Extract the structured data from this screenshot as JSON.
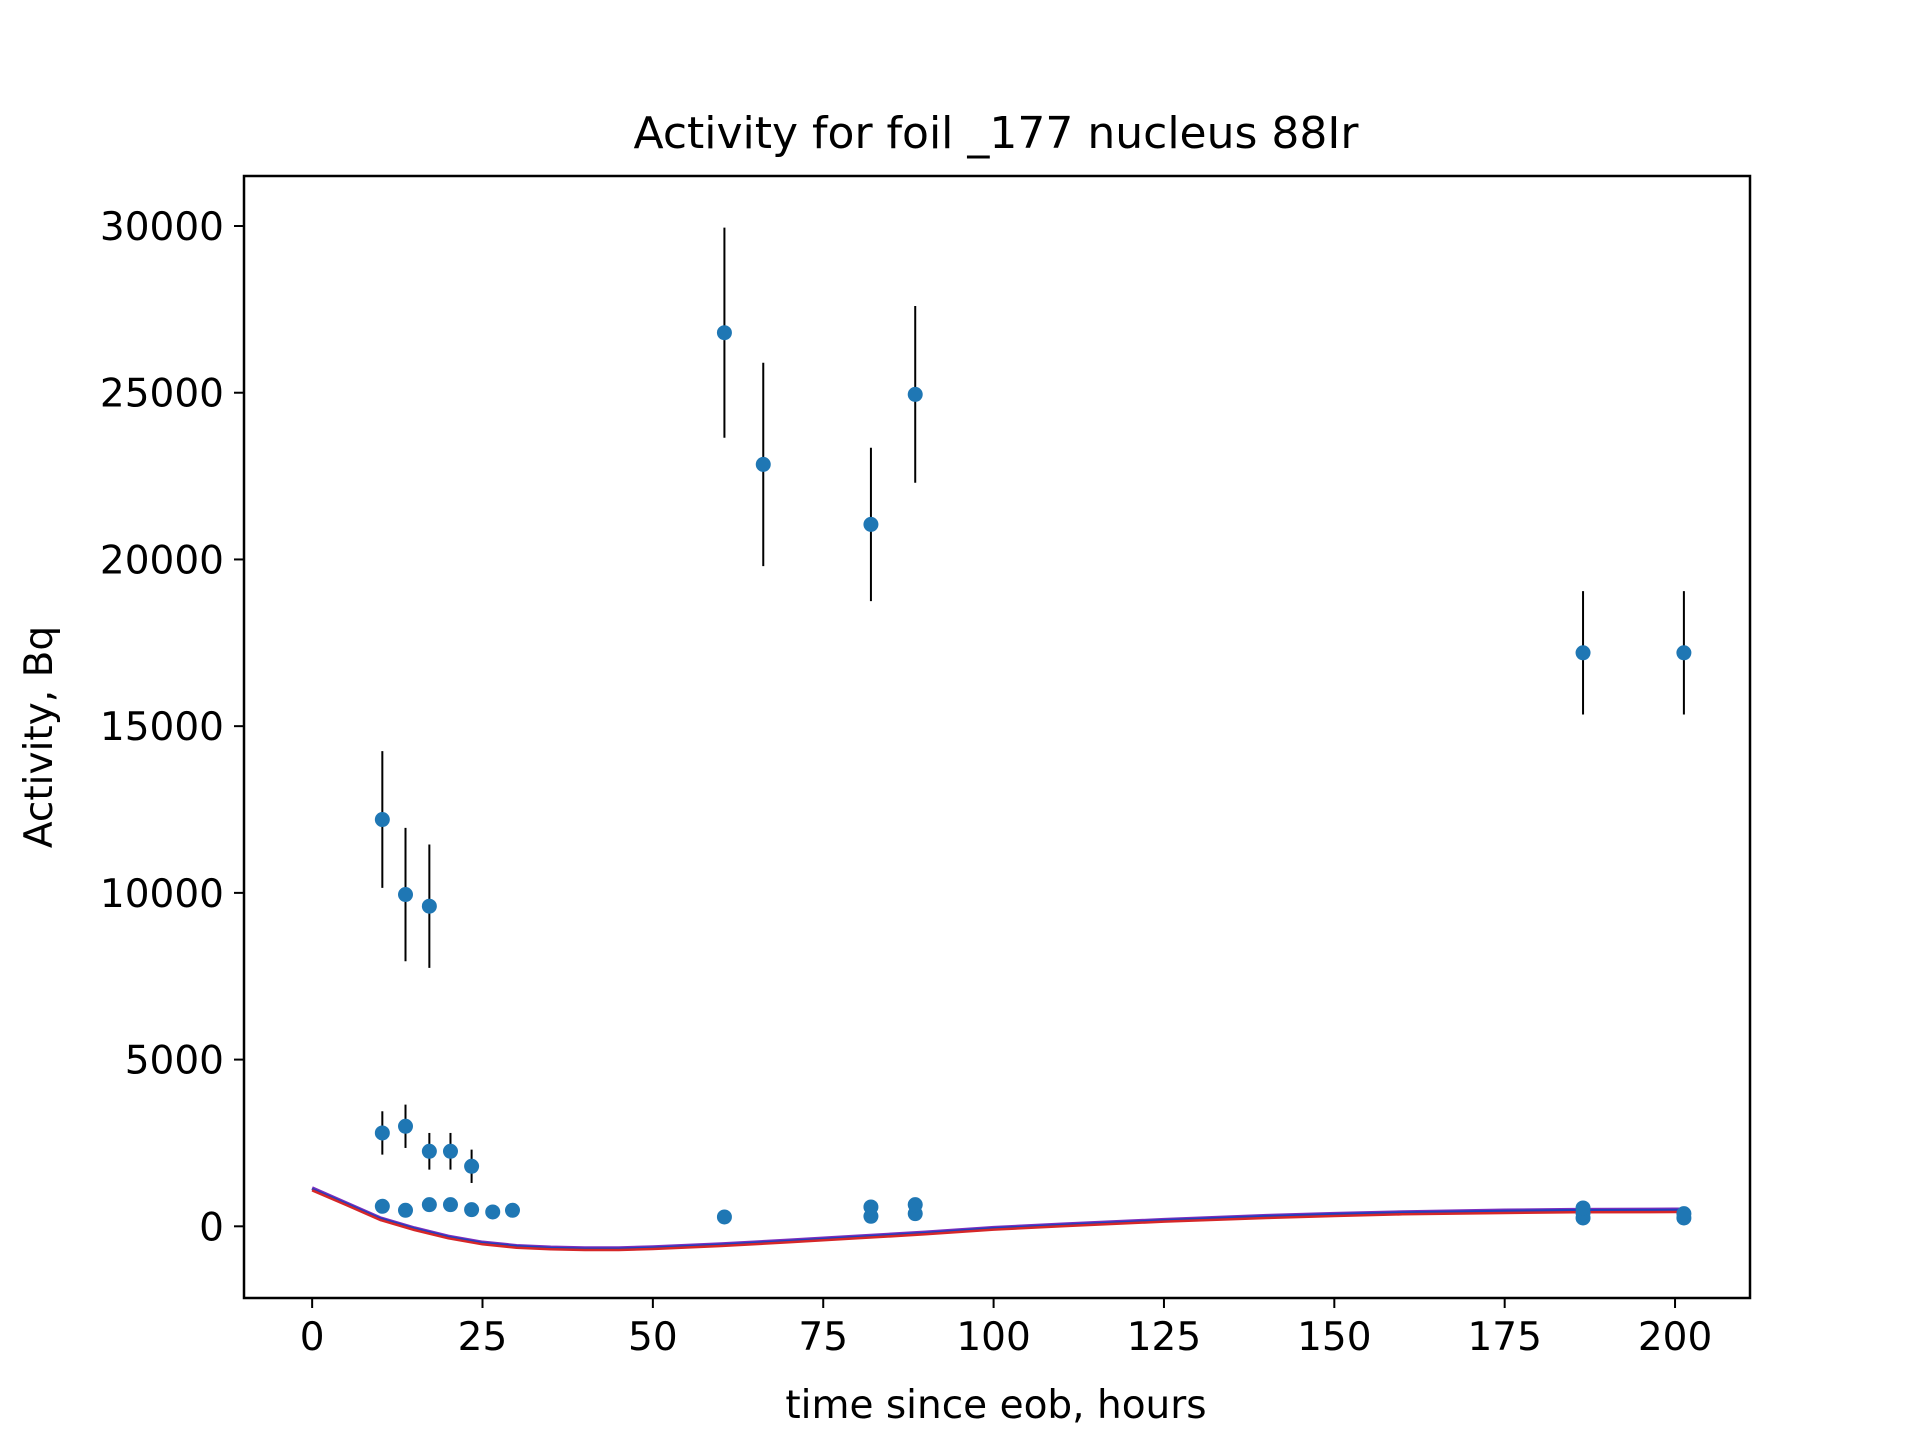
{
  "chart_data": {
    "type": "scatter",
    "title": "Activity for foil _177 nucleus 88Ir",
    "xlabel": "time since eob, hours",
    "ylabel": "Activity, Bq",
    "xlim": [
      -10,
      211
    ],
    "ylim": [
      -2150,
      31500
    ],
    "xticks": [
      0,
      25,
      50,
      75,
      100,
      125,
      150,
      175,
      200
    ],
    "yticks": [
      0,
      5000,
      10000,
      15000,
      20000,
      25000,
      30000
    ],
    "grid": false,
    "marker_color": "#1f77b4",
    "errorbar_color": "#000000",
    "points": [
      {
        "x": 10.3,
        "y": 12200,
        "err": 2050
      },
      {
        "x": 13.7,
        "y": 9950,
        "err": 2000
      },
      {
        "x": 17.2,
        "y": 9600,
        "err": 1850
      },
      {
        "x": 60.5,
        "y": 26800,
        "err": 3150
      },
      {
        "x": 66.2,
        "y": 22850,
        "err": 3050
      },
      {
        "x": 82.0,
        "y": 21050,
        "err": 2300
      },
      {
        "x": 88.5,
        "y": 24950,
        "err": 2650
      },
      {
        "x": 186.5,
        "y": 17200,
        "err": 1850
      },
      {
        "x": 201.3,
        "y": 17200,
        "err": 1850
      },
      {
        "x": 10.3,
        "y": 2800,
        "err": 650
      },
      {
        "x": 13.7,
        "y": 3000,
        "err": 650
      },
      {
        "x": 17.2,
        "y": 2250,
        "err": 550
      },
      {
        "x": 20.3,
        "y": 2250,
        "err": 550
      },
      {
        "x": 23.4,
        "y": 1800,
        "err": 500
      },
      {
        "x": 10.3,
        "y": 600,
        "err": 0
      },
      {
        "x": 13.7,
        "y": 480,
        "err": 0
      },
      {
        "x": 17.2,
        "y": 650,
        "err": 0
      },
      {
        "x": 20.3,
        "y": 650,
        "err": 0
      },
      {
        "x": 23.4,
        "y": 500,
        "err": 0
      },
      {
        "x": 26.5,
        "y": 430,
        "err": 0
      },
      {
        "x": 29.4,
        "y": 480,
        "err": 0
      },
      {
        "x": 60.5,
        "y": 280,
        "err": 0
      },
      {
        "x": 82.0,
        "y": 300,
        "err": 0
      },
      {
        "x": 82.0,
        "y": 580,
        "err": 0
      },
      {
        "x": 88.5,
        "y": 380,
        "err": 0
      },
      {
        "x": 88.5,
        "y": 650,
        "err": 0
      },
      {
        "x": 186.5,
        "y": 250,
        "err": 0
      },
      {
        "x": 186.5,
        "y": 400,
        "err": 0
      },
      {
        "x": 186.5,
        "y": 550,
        "err": 0
      },
      {
        "x": 201.3,
        "y": 250,
        "err": 0
      },
      {
        "x": 201.3,
        "y": 380,
        "err": 0
      }
    ],
    "fit_lines": [
      {
        "color": "#7b2fbe",
        "width": 3.5,
        "points": [
          [
            0,
            1150
          ],
          [
            5,
            700
          ],
          [
            10,
            250
          ],
          [
            15,
            -50
          ],
          [
            20,
            -300
          ],
          [
            25,
            -480
          ],
          [
            30,
            -580
          ],
          [
            35,
            -630
          ],
          [
            40,
            -650
          ],
          [
            45,
            -650
          ],
          [
            50,
            -620
          ],
          [
            60,
            -530
          ],
          [
            70,
            -420
          ],
          [
            80,
            -300
          ],
          [
            90,
            -180
          ],
          [
            100,
            -40
          ],
          [
            110,
            60
          ],
          [
            125,
            200
          ],
          [
            140,
            320
          ],
          [
            150,
            380
          ],
          [
            160,
            430
          ],
          [
            175,
            480
          ],
          [
            185,
            500
          ],
          [
            200,
            510
          ],
          [
            201.3,
            510
          ]
        ]
      },
      {
        "color": "#1f3fbf",
        "width": 2.5,
        "points": [
          [
            0,
            1120
          ],
          [
            5,
            680
          ],
          [
            10,
            230
          ],
          [
            15,
            -70
          ],
          [
            20,
            -320
          ],
          [
            25,
            -500
          ],
          [
            30,
            -600
          ],
          [
            35,
            -650
          ],
          [
            40,
            -670
          ],
          [
            45,
            -670
          ],
          [
            50,
            -640
          ],
          [
            60,
            -550
          ],
          [
            70,
            -440
          ],
          [
            80,
            -320
          ],
          [
            90,
            -200
          ],
          [
            100,
            -60
          ],
          [
            110,
            40
          ],
          [
            125,
            180
          ],
          [
            140,
            300
          ],
          [
            150,
            360
          ],
          [
            160,
            410
          ],
          [
            175,
            460
          ],
          [
            185,
            480
          ],
          [
            200,
            490
          ],
          [
            201.3,
            490
          ]
        ]
      },
      {
        "color": "#d62728",
        "width": 2.5,
        "points": [
          [
            0,
            1080
          ],
          [
            5,
            640
          ],
          [
            10,
            190
          ],
          [
            15,
            -110
          ],
          [
            20,
            -360
          ],
          [
            25,
            -540
          ],
          [
            30,
            -640
          ],
          [
            35,
            -690
          ],
          [
            40,
            -710
          ],
          [
            45,
            -710
          ],
          [
            50,
            -680
          ],
          [
            60,
            -590
          ],
          [
            70,
            -480
          ],
          [
            80,
            -360
          ],
          [
            90,
            -240
          ],
          [
            100,
            -100
          ],
          [
            110,
            0
          ],
          [
            125,
            140
          ],
          [
            140,
            250
          ],
          [
            150,
            310
          ],
          [
            160,
            360
          ],
          [
            175,
            400
          ],
          [
            185,
            420
          ],
          [
            200,
            430
          ],
          [
            201.3,
            430
          ]
        ]
      }
    ]
  }
}
